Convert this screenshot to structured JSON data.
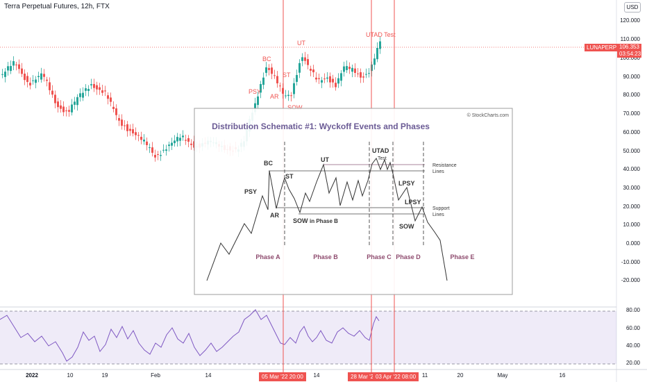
{
  "chart": {
    "symbol_title": "Terra Perpetual Futures, 12h, FTX",
    "currency_button": "USD",
    "symbol_tag": "LUNAPERP",
    "last_price": "106.353",
    "countdown": "03:54:23",
    "accent_color": "#ef5350",
    "up_color": "#26a69a",
    "down_color": "#ef5350"
  },
  "price_axis": [
    "120.000",
    "110.000",
    "100.000",
    "90.000",
    "80.000",
    "70.000",
    "60.000",
    "50.000",
    "40.000",
    "30.000",
    "20.000",
    "10.000",
    "0.000",
    "-10.000",
    "-20.000"
  ],
  "rsi_axis": [
    "80.00",
    "60.00",
    "40.00",
    "20.00"
  ],
  "time_axis": [
    "2022",
    "10",
    "19",
    "Feb",
    "14",
    "14",
    "11",
    "20",
    "May",
    "16"
  ],
  "date_tags": [
    "05 Mar '22  20:00",
    "28 Mar '22",
    "03 Apr '22  08:00"
  ],
  "chart_labels": {
    "psy": "PSY",
    "bc": "BC",
    "ar": "AR",
    "st": "ST",
    "ut": "UT",
    "sow": "SOW",
    "utad": "UTAD Test"
  },
  "schematic": {
    "title": "Distribution Schematic #1: Wyckoff Events and Phases",
    "credit": "© StockCharts.com",
    "events": {
      "bc": "BC",
      "psy": "PSY",
      "st": "ST",
      "ar": "AR",
      "ut": "UT",
      "sow_b": "SOW",
      "sow_b_suffix": "in Phase B",
      "utad": "UTAD",
      "test": "Test",
      "lpsy1": "LPSY",
      "lpsy2": "LPSY",
      "sow": "SOW"
    },
    "lines": {
      "resistance_1": "Resistance",
      "resistance_2": "Lines",
      "support_1": "Support",
      "support_2": "Lines"
    },
    "phases": [
      "Phase A",
      "Phase B",
      "Phase C",
      "Phase D",
      "Phase E"
    ]
  }
}
